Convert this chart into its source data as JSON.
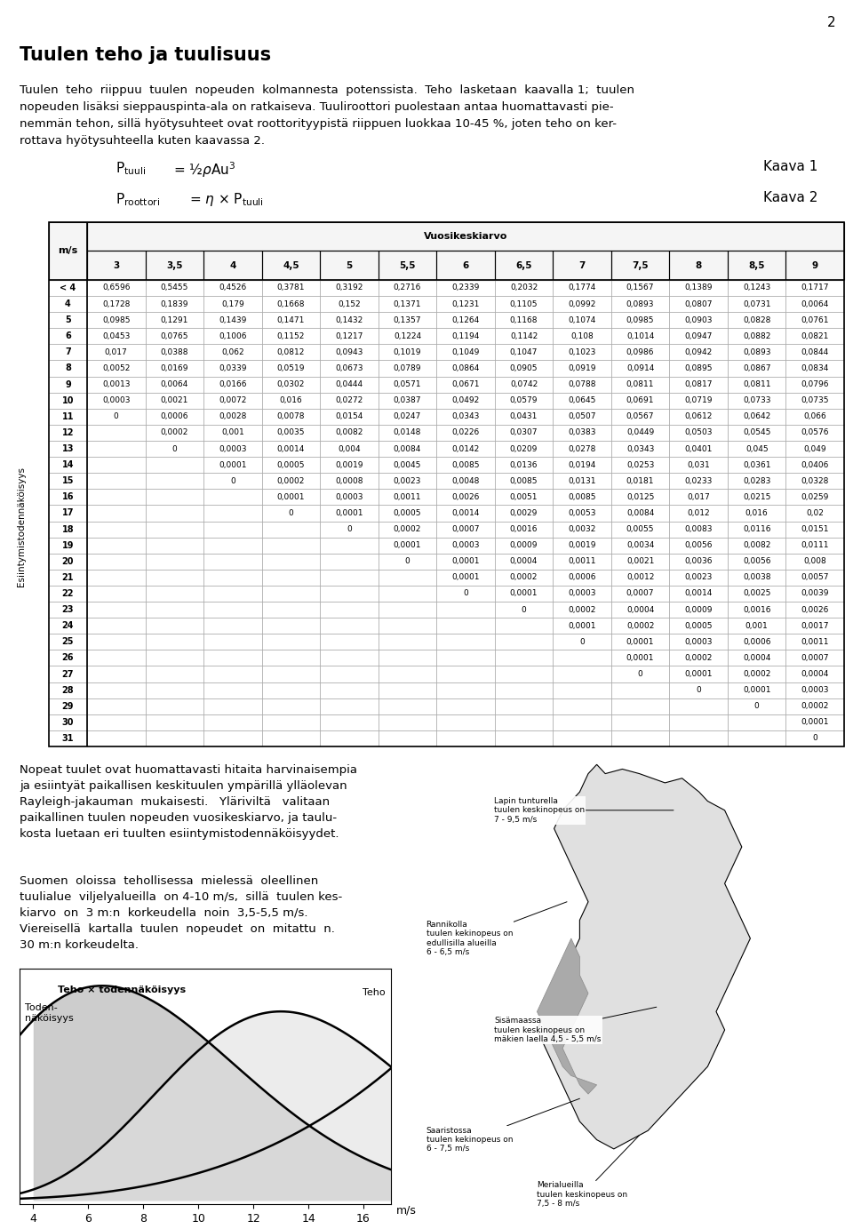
{
  "page_number": "2",
  "title": "Tuulen teho ja tuulisuus",
  "table_col_header": [
    "m/s",
    "3",
    "3,5",
    "4",
    "4,5",
    "5",
    "5,5",
    "6",
    "6,5",
    "7",
    "7,5",
    "8",
    "8,5",
    "9"
  ],
  "table_row_header_label": "Esiintymistodennäköisyys",
  "table_rows": [
    [
      "< 4",
      "0,6596",
      "0,5455",
      "0,4526",
      "0,3781",
      "0,3192",
      "0,2716",
      "0,2339",
      "0,2032",
      "0,1774",
      "0,1567",
      "0,1389",
      "0,1243",
      "0,1717"
    ],
    [
      "4",
      "0,1728",
      "0,1839",
      "0,179",
      "0,1668",
      "0,152",
      "0,1371",
      "0,1231",
      "0,1105",
      "0,0992",
      "0,0893",
      "0,0807",
      "0,0731",
      "0,0064"
    ],
    [
      "5",
      "0,0985",
      "0,1291",
      "0,1439",
      "0,1471",
      "0,1432",
      "0,1357",
      "0,1264",
      "0,1168",
      "0,1074",
      "0,0985",
      "0,0903",
      "0,0828",
      "0,0761"
    ],
    [
      "6",
      "0,0453",
      "0,0765",
      "0,1006",
      "0,1152",
      "0,1217",
      "0,1224",
      "0,1194",
      "0,1142",
      "0,108",
      "0,1014",
      "0,0947",
      "0,0882",
      "0,0821"
    ],
    [
      "7",
      "0,017",
      "0,0388",
      "0,062",
      "0,0812",
      "0,0943",
      "0,1019",
      "0,1049",
      "0,1047",
      "0,1023",
      "0,0986",
      "0,0942",
      "0,0893",
      "0,0844"
    ],
    [
      "8",
      "0,0052",
      "0,0169",
      "0,0339",
      "0,0519",
      "0,0673",
      "0,0789",
      "0,0864",
      "0,0905",
      "0,0919",
      "0,0914",
      "0,0895",
      "0,0867",
      "0,0834"
    ],
    [
      "9",
      "0,0013",
      "0,0064",
      "0,0166",
      "0,0302",
      "0,0444",
      "0,0571",
      "0,0671",
      "0,0742",
      "0,0788",
      "0,0811",
      "0,0817",
      "0,0811",
      "0,0796"
    ],
    [
      "10",
      "0,0003",
      "0,0021",
      "0,0072",
      "0,016",
      "0,0272",
      "0,0387",
      "0,0492",
      "0,0579",
      "0,0645",
      "0,0691",
      "0,0719",
      "0,0733",
      "0,0735"
    ],
    [
      "11",
      "0",
      "0,0006",
      "0,0028",
      "0,0078",
      "0,0154",
      "0,0247",
      "0,0343",
      "0,0431",
      "0,0507",
      "0,0567",
      "0,0612",
      "0,0642",
      "0,066"
    ],
    [
      "12",
      "",
      "0,0002",
      "0,001",
      "0,0035",
      "0,0082",
      "0,0148",
      "0,0226",
      "0,0307",
      "0,0383",
      "0,0449",
      "0,0503",
      "0,0545",
      "0,0576"
    ],
    [
      "13",
      "",
      "0",
      "0,0003",
      "0,0014",
      "0,004",
      "0,0084",
      "0,0142",
      "0,0209",
      "0,0278",
      "0,0343",
      "0,0401",
      "0,045",
      "0,049"
    ],
    [
      "14",
      "",
      "",
      "0,0001",
      "0,0005",
      "0,0019",
      "0,0045",
      "0,0085",
      "0,0136",
      "0,0194",
      "0,0253",
      "0,031",
      "0,0361",
      "0,0406"
    ],
    [
      "15",
      "",
      "",
      "0",
      "0,0002",
      "0,0008",
      "0,0023",
      "0,0048",
      "0,0085",
      "0,0131",
      "0,0181",
      "0,0233",
      "0,0283",
      "0,0328"
    ],
    [
      "16",
      "",
      "",
      "",
      "0,0001",
      "0,0003",
      "0,0011",
      "0,0026",
      "0,0051",
      "0,0085",
      "0,0125",
      "0,017",
      "0,0215",
      "0,0259"
    ],
    [
      "17",
      "",
      "",
      "",
      "0",
      "0,0001",
      "0,0005",
      "0,0014",
      "0,0029",
      "0,0053",
      "0,0084",
      "0,012",
      "0,016",
      "0,02"
    ],
    [
      "18",
      "",
      "",
      "",
      "",
      "0",
      "0,0002",
      "0,0007",
      "0,0016",
      "0,0032",
      "0,0055",
      "0,0083",
      "0,0116",
      "0,0151"
    ],
    [
      "19",
      "",
      "",
      "",
      "",
      "",
      "0,0001",
      "0,0003",
      "0,0009",
      "0,0019",
      "0,0034",
      "0,0056",
      "0,0082",
      "0,0111"
    ],
    [
      "20",
      "",
      "",
      "",
      "",
      "",
      "0",
      "0,0001",
      "0,0004",
      "0,0011",
      "0,0021",
      "0,0036",
      "0,0056",
      "0,008"
    ],
    [
      "21",
      "",
      "",
      "",
      "",
      "",
      "",
      "0,0001",
      "0,0002",
      "0,0006",
      "0,0012",
      "0,0023",
      "0,0038",
      "0,0057"
    ],
    [
      "22",
      "",
      "",
      "",
      "",
      "",
      "",
      "0",
      "0,0001",
      "0,0003",
      "0,0007",
      "0,0014",
      "0,0025",
      "0,0039"
    ],
    [
      "23",
      "",
      "",
      "",
      "",
      "",
      "",
      "",
      "0",
      "0,0002",
      "0,0004",
      "0,0009",
      "0,0016",
      "0,0026"
    ],
    [
      "24",
      "",
      "",
      "",
      "",
      "",
      "",
      "",
      "",
      "0,0001",
      "0,0002",
      "0,0005",
      "0,001",
      "0,0017"
    ],
    [
      "25",
      "",
      "",
      "",
      "",
      "",
      "",
      "",
      "",
      "0",
      "0,0001",
      "0,0003",
      "0,0006",
      "0,0011"
    ],
    [
      "26",
      "",
      "",
      "",
      "",
      "",
      "",
      "",
      "",
      "",
      "0,0001",
      "0,0002",
      "0,0004",
      "0,0007"
    ],
    [
      "27",
      "",
      "",
      "",
      "",
      "",
      "",
      "",
      "",
      "",
      "0",
      "0,0001",
      "0,0002",
      "0,0004"
    ],
    [
      "28",
      "",
      "",
      "",
      "",
      "",
      "",
      "",
      "",
      "",
      "",
      "0",
      "0,0001",
      "0,0003"
    ],
    [
      "29",
      "",
      "",
      "",
      "",
      "",
      "",
      "",
      "",
      "",
      "",
      "",
      "0",
      "0,0002"
    ],
    [
      "30",
      "",
      "",
      "",
      "",
      "",
      "",
      "",
      "",
      "",
      "",
      "",
      "",
      "0,0001"
    ],
    [
      "31",
      "",
      "",
      "",
      "",
      "",
      "",
      "",
      "",
      "",
      "",
      "",
      "",
      "0"
    ]
  ]
}
